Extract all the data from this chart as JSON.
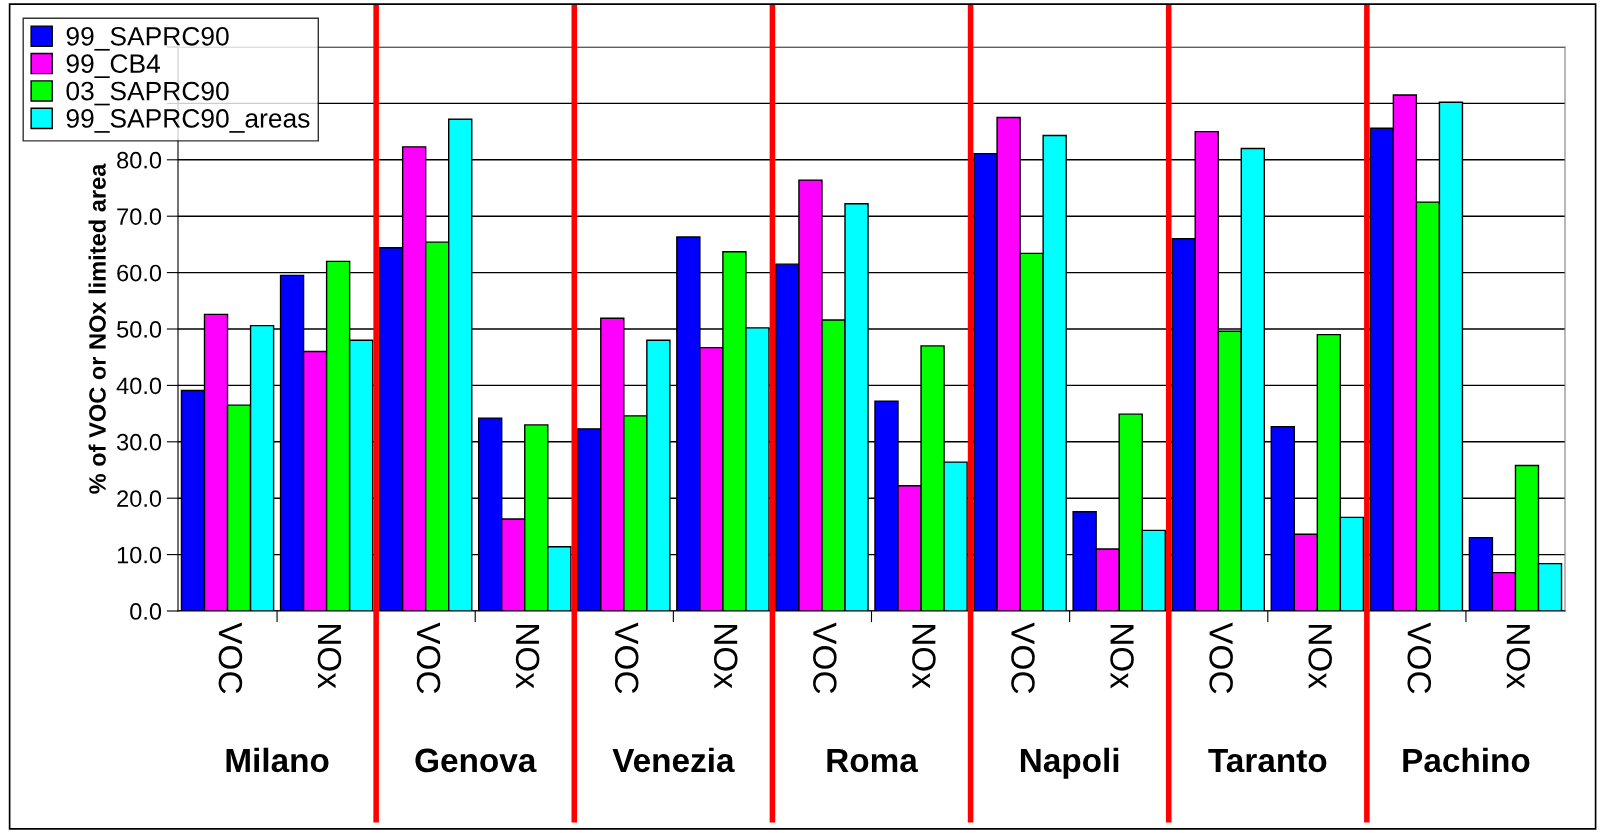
{
  "chart_data": {
    "type": "bar",
    "ylabel": "% of VOC or NOx limited area",
    "categories": [
      "VOC",
      "NOx",
      "VOC",
      "NOx",
      "VOC",
      "NOx",
      "VOC",
      "NOx",
      "VOC",
      "NOx",
      "VOC",
      "NOx",
      "VOC",
      "NOx"
    ],
    "series": [
      {
        "name": "99_SAPRC90",
        "color": "#0000ff",
        "values": [
          39.1,
          59.5,
          64.4,
          34.2,
          32.3,
          66.3,
          61.5,
          37.2,
          81.1,
          17.6,
          66.0,
          32.7,
          85.6,
          13.0
        ]
      },
      {
        "name": "99_CB4",
        "color": "#ff00ff",
        "values": [
          52.6,
          46.0,
          82.3,
          16.3,
          51.9,
          46.7,
          76.4,
          22.2,
          87.5,
          11.0,
          85.0,
          13.6,
          91.5,
          6.8
        ]
      },
      {
        "name": "03_SAPRC90",
        "color": "#00ff00",
        "values": [
          36.5,
          62.0,
          65.4,
          33.0,
          34.6,
          63.7,
          51.6,
          47.0,
          63.4,
          34.9,
          49.6,
          49.0,
          72.5,
          25.8
        ]
      },
      {
        "name": "99_SAPRC90_areas",
        "color": "#00ffff",
        "values": [
          50.6,
          48.0,
          87.2,
          11.4,
          48.0,
          50.2,
          72.2,
          26.4,
          84.3,
          14.3,
          82.0,
          16.6,
          90.2,
          8.4
        ]
      }
    ],
    "annotations": [
      "Milano",
      "Genova",
      "Venezia",
      "Roma",
      "Napoli",
      "Taranto",
      "Pachino"
    ],
    "ylim": [
      0,
      100
    ],
    "yticks": [
      {
        "value": 0,
        "label": "0.0"
      },
      {
        "value": 10,
        "label": "10.0"
      },
      {
        "value": 20,
        "label": "20.0"
      },
      {
        "value": 30,
        "label": "30.0"
      },
      {
        "value": 40,
        "label": "40.0"
      },
      {
        "value": 50,
        "label": "50.0"
      },
      {
        "value": 60,
        "label": "60.0"
      },
      {
        "value": 70,
        "label": "70.0"
      },
      {
        "value": 80,
        "label": "80.0"
      },
      {
        "value": 90,
        "label": null
      },
      {
        "value": 100,
        "label": null
      }
    ],
    "grid": "y",
    "legend": "top left"
  }
}
